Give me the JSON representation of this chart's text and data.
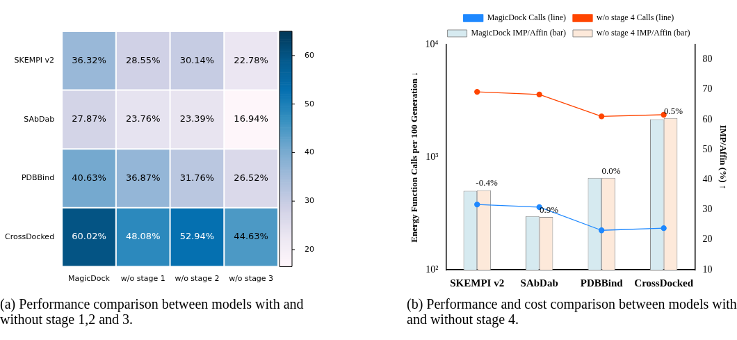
{
  "chart_data": [
    {
      "type": "heatmap",
      "categories": [
        "MagicDock",
        "w/o stage 1",
        "w/o stage 2",
        "w/o stage 3"
      ],
      "y_categories": [
        "SKEMPI v2",
        "SAbDab",
        "PDBBind",
        "CrossDocked"
      ],
      "cells": [
        [
          36.32,
          28.55,
          30.14,
          22.78
        ],
        [
          27.87,
          23.76,
          23.39,
          16.94
        ],
        [
          40.63,
          36.87,
          31.76,
          26.52
        ],
        [
          60.02,
          48.08,
          52.94,
          44.63
        ]
      ],
      "cell_labels": [
        [
          "36.32%",
          "28.55%",
          "30.14%",
          "22.78%"
        ],
        [
          "27.87%",
          "23.76%",
          "23.39%",
          "16.94%"
        ],
        [
          "40.63%",
          "36.87%",
          "31.76%",
          "26.52%"
        ],
        [
          "60.02%",
          "48.08%",
          "52.94%",
          "44.63%"
        ]
      ],
      "clim": [
        16.5,
        65
      ],
      "cticks": [
        20,
        30,
        40,
        50,
        60
      ],
      "annotations": [
        "(a) Performance comparison between models with and without stage 1,2 and 3."
      ]
    },
    {
      "type": "bar",
      "categories": [
        "SKEMPI v2",
        "SAbDab",
        "PDBBind",
        "CrossDocked"
      ],
      "series": [
        {
          "name": "MagicDock Calls (line)",
          "type": "line",
          "color": "#1e88ff",
          "values": [
            380,
            360,
            224,
            234
          ]
        },
        {
          "name": "w/o stage 4 Calls (line)",
          "type": "line",
          "color": "#ff4500",
          "values": [
            3800,
            3600,
            2300,
            2380
          ]
        },
        {
          "name": "MagicDock IMP/Affin (bar)",
          "type": "bar",
          "axis": "y2",
          "color": "#d6eaf0",
          "values": [
            36.3,
            27.9,
            40.6,
            60.1
          ]
        },
        {
          "name": "w/o stage 4 IMP/Affin (bar)",
          "type": "bar",
          "axis": "y2",
          "color": "#fde9da",
          "values": [
            36.5,
            27.6,
            40.6,
            60.5
          ]
        }
      ],
      "ylabel": "Energy Function Calls per 100 Generation ↓",
      "y2label": "IMP/Affin (%) ↑",
      "log": "y",
      "ylim": [
        100,
        10000
      ],
      "yticks": [
        {
          "value": 100,
          "label": "10²"
        },
        {
          "value": 1000,
          "label": "10³"
        },
        {
          "value": 10000,
          "label": "10⁴"
        }
      ],
      "y2lim": [
        10,
        85
      ],
      "y2ticks": [
        10,
        20,
        30,
        40,
        50,
        60,
        70,
        80
      ],
      "legend": "top",
      "marker": "circle",
      "grid": false,
      "annotations": [
        "-0.4%",
        "0.9%",
        "0.0%",
        "0.5%",
        "(b) Performance and cost comparison between models with and without stage 4."
      ]
    }
  ]
}
